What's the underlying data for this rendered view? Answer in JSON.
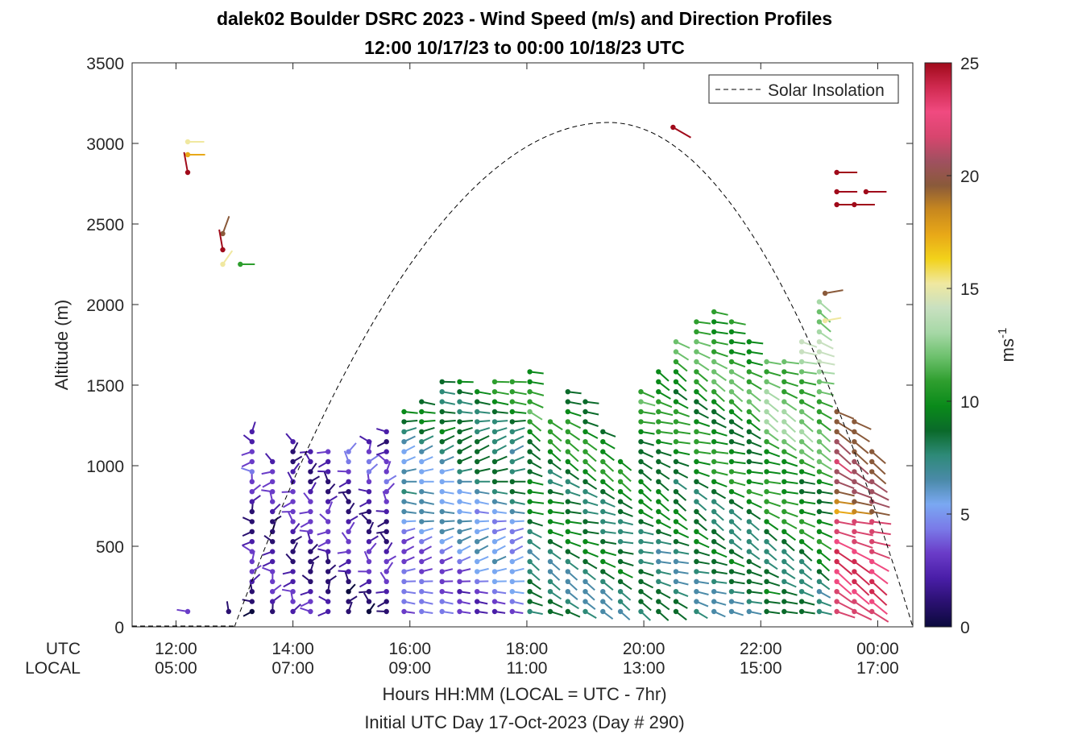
{
  "chart_data": {
    "type": "scatter",
    "title": "dalek02 Boulder DSRC 2023 - Wind Speed (m/s) and Direction Profiles",
    "subtitle": "12:00 10/17/23 to 00:00 10/18/23  UTC",
    "ylabel": "Altitude (m)",
    "xlabel": "Hours HH:MM  (LOCAL = UTC - 7hr)",
    "xlabel2": "Initial UTC Day 17-Oct-2023 (Day # 290)",
    "ylim": [
      0,
      3500
    ],
    "xlim_hours": [
      11.25,
      24.6
    ],
    "yticks": [
      "0",
      "500",
      "1000",
      "1500",
      "2000",
      "2500",
      "3000",
      "3500"
    ],
    "ytick_values": [
      0,
      500,
      1000,
      1500,
      2000,
      2500,
      3000,
      3500
    ],
    "xtick_hours": [
      12,
      14,
      16,
      18,
      20,
      22,
      24
    ],
    "xticks_utc": [
      "12:00",
      "14:00",
      "16:00",
      "18:00",
      "20:00",
      "22:00",
      "00:00"
    ],
    "xticks_local": [
      "05:00",
      "07:00",
      "09:00",
      "11:00",
      "13:00",
      "15:00",
      "17:00"
    ],
    "row_label_utc": "UTC",
    "row_label_local": "LOCAL",
    "legend": {
      "entry": "Solar Insolation",
      "placement": "top-right"
    },
    "colorbar": {
      "label": "ms",
      "label_exponent": "-1",
      "range": [
        0,
        25
      ],
      "ticks": [
        "0",
        "5",
        "10",
        "15",
        "20",
        "25"
      ],
      "tick_values": [
        0,
        5,
        10,
        15,
        20,
        25
      ],
      "colors": [
        "#0b0a3d",
        "#2a1070",
        "#4a1ea8",
        "#6a3cc8",
        "#7a7ae8",
        "#7aa8f2",
        "#4a8aa8",
        "#2e8a78",
        "#0a6a2a",
        "#0a8a1a",
        "#2e9e2e",
        "#6cc06c",
        "#a6d8a6",
        "#c8e0c0",
        "#f0e8a0",
        "#f2d21a",
        "#e8a818",
        "#c8881e",
        "#8a5a3a",
        "#a05060",
        "#d8456e",
        "#f04a80",
        "#d02a50",
        "#a00a1a"
      ]
    },
    "solar_insolation": {
      "peak_hour": 19.4,
      "peak_altitude_m": 3130,
      "zero_hours": [
        13.0,
        24.6
      ]
    },
    "profile_hours": [
      12.2,
      12.9,
      13.3,
      13.65,
      14.0,
      14.3,
      14.6,
      14.95,
      15.3,
      15.6,
      15.9,
      16.2,
      16.55,
      16.85,
      17.15,
      17.45,
      17.75,
      18.05,
      18.4,
      18.7,
      19.0,
      19.3,
      19.6,
      19.95,
      20.25,
      20.55,
      20.9,
      21.2,
      21.5,
      21.8,
      22.1,
      22.4,
      22.7,
      23.0,
      23.3,
      23.6,
      23.9
    ],
    "profile_tops_m": [
      130,
      130,
      1250,
      1050,
      1190,
      1100,
      1110,
      1120,
      1210,
      1250,
      1370,
      1440,
      1540,
      1560,
      1480,
      1540,
      1580,
      1630,
      1330,
      1480,
      1410,
      1250,
      1040,
      1490,
      1600,
      1830,
      1920,
      2000,
      1910,
      1800,
      1700,
      1700,
      1800,
      2070,
      1380,
      1330,
      1110
    ],
    "high_altitude_barbs": [
      {
        "hour": 12.2,
        "altitude_m": 3010,
        "speed_ms": 15.5,
        "direction_deg": 270
      },
      {
        "hour": 12.2,
        "altitude_m": 2930,
        "speed_ms": 17.5,
        "direction_deg": 270
      },
      {
        "hour": 12.2,
        "altitude_m": 2820,
        "speed_ms": 24.5,
        "direction_deg": 170
      },
      {
        "hour": 12.8,
        "altitude_m": 2440,
        "speed_ms": 20.0,
        "direction_deg": 200
      },
      {
        "hour": 12.8,
        "altitude_m": 2340,
        "speed_ms": 24.5,
        "direction_deg": 170
      },
      {
        "hour": 12.8,
        "altitude_m": 2250,
        "speed_ms": 15.5,
        "direction_deg": 215
      },
      {
        "hour": 13.1,
        "altitude_m": 2250,
        "speed_ms": 11.0,
        "direction_deg": 270
      },
      {
        "hour": 20.5,
        "altitude_m": 3100,
        "speed_ms": 24.5,
        "direction_deg": 300
      },
      {
        "hour": 23.3,
        "altitude_m": 2820,
        "speed_ms": 24.5,
        "direction_deg": 270
      },
      {
        "hour": 23.3,
        "altitude_m": 2700,
        "speed_ms": 24.5,
        "direction_deg": 270
      },
      {
        "hour": 23.3,
        "altitude_m": 2620,
        "speed_ms": 24.5,
        "direction_deg": 270
      },
      {
        "hour": 23.6,
        "altitude_m": 2620,
        "speed_ms": 24.5,
        "direction_deg": 270
      },
      {
        "hour": 23.8,
        "altitude_m": 2700,
        "speed_ms": 24.5,
        "direction_deg": 270
      },
      {
        "hour": 23.1,
        "altitude_m": 2070,
        "speed_ms": 19.5,
        "direction_deg": 260
      },
      {
        "hour": 23.1,
        "altitude_m": 1900,
        "speed_ms": 15.0,
        "direction_deg": 260
      }
    ]
  }
}
